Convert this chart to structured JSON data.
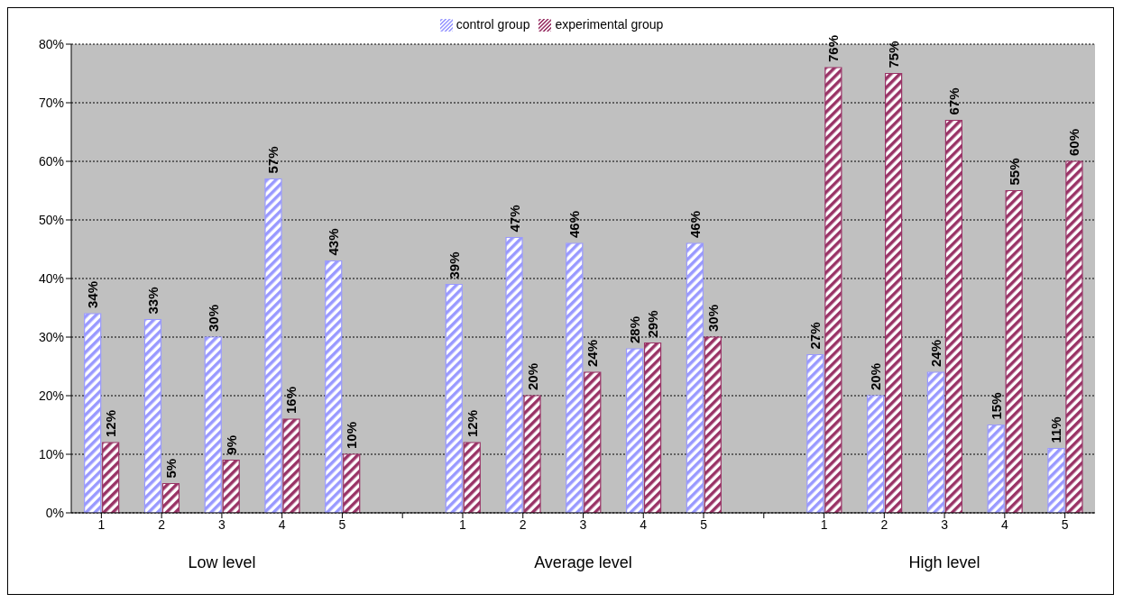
{
  "chart_data": {
    "type": "bar",
    "categories": [
      "1",
      "2",
      "3",
      "4",
      "5",
      null,
      "1",
      "2",
      "3",
      "4",
      "5",
      null,
      "1",
      "2",
      "3",
      "4",
      "5"
    ],
    "series": [
      {
        "name": "control group",
        "color": "#9999ff",
        "values": [
          34,
          33,
          30,
          57,
          43,
          null,
          39,
          47,
          46,
          28,
          46,
          null,
          27,
          20,
          24,
          15,
          11
        ],
        "value_labels": [
          "34%",
          "33%",
          "30%",
          "57%",
          "43%",
          null,
          "39%",
          "47%",
          "46%",
          "28%",
          "46%",
          null,
          "27%",
          "20%",
          "24%",
          "15%",
          "11%"
        ]
      },
      {
        "name": "experimental group",
        "color": "#993366",
        "values": [
          12,
          5,
          9,
          16,
          10,
          null,
          12,
          20,
          24,
          29,
          30,
          null,
          76,
          75,
          67,
          55,
          60
        ],
        "value_labels": [
          "12%",
          "5%",
          "9%",
          "16%",
          "10%",
          null,
          "12%",
          "20%",
          "24%",
          "29%",
          "30%",
          null,
          "76%",
          "75%",
          "67%",
          "55%",
          "60%"
        ]
      }
    ],
    "ylim": [
      0,
      80
    ],
    "yticks": [
      {
        "value": 0,
        "label": "0%"
      },
      {
        "value": 10,
        "label": "10%"
      },
      {
        "value": 20,
        "label": "20%"
      },
      {
        "value": 30,
        "label": "30%"
      },
      {
        "value": 40,
        "label": "40%"
      },
      {
        "value": 50,
        "label": "50%"
      },
      {
        "value": 60,
        "label": "60%"
      },
      {
        "value": 70,
        "label": "70%"
      },
      {
        "value": 80,
        "label": "80%"
      }
    ],
    "grid": "y",
    "legend": "top",
    "annotations": [
      "Low level",
      "Average level",
      "High level"
    ]
  }
}
